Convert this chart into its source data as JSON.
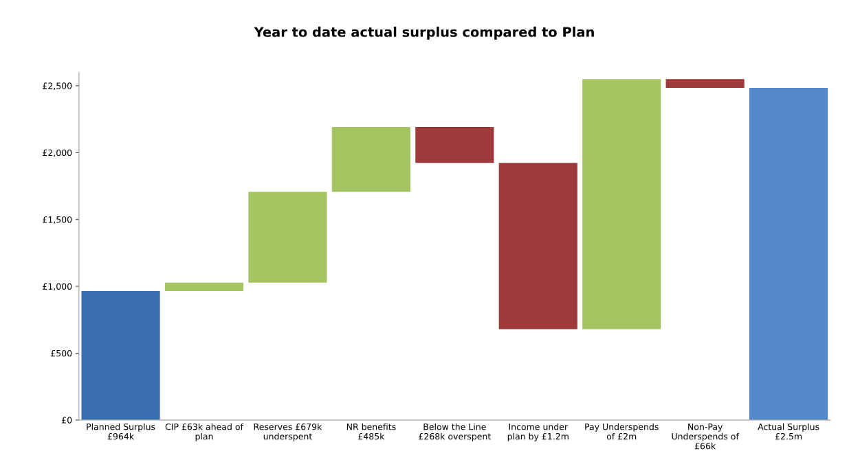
{
  "chart_data": {
    "type": "bar",
    "title": "Year to date actual surplus compared to Plan",
    "categories": [
      "Planned Surplus\n£964k",
      "CIP £63k ahead of\nplan",
      "Reserves £679k\nunderspent",
      "NR benefits\n£485k",
      "Below the Line\n£268k overspent",
      "Income under\nplan by £1.2m",
      "Pay Underspends\nof £2m",
      "Non-Pay\nUnderspends of\n£66k",
      "Actual Surplus\n£2.5m"
    ],
    "values": [
      964,
      63,
      679,
      485,
      268,
      1243,
      1870,
      66,
      2484
    ],
    "base": [
      0,
      964,
      1027,
      1706,
      1923,
      680,
      680,
      2484,
      0
    ],
    "colors": [
      "#3a6db0",
      "#a4c462",
      "#a4c462",
      "#a4c462",
      "#a0393a",
      "#a0393a",
      "#a4c462",
      "#a0393a",
      "#5588c8"
    ],
    "ylim": [
      0,
      2600
    ],
    "yticks": [
      {
        "value": 0,
        "label": "£0"
      },
      {
        "value": 500,
        "label": "£500"
      },
      {
        "value": 1000,
        "label": "£1,000"
      },
      {
        "value": 1500,
        "label": "£1,500"
      },
      {
        "value": 2000,
        "label": "£2,000"
      },
      {
        "value": 2500,
        "label": "£2,500"
      }
    ],
    "grid": false
  }
}
